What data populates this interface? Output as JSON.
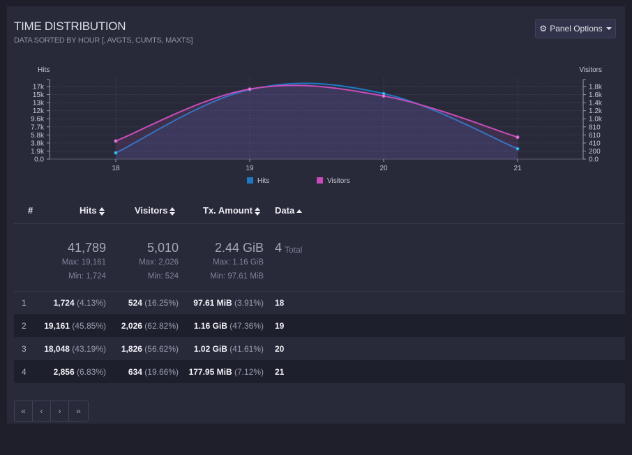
{
  "panel": {
    "title": "TIME DISTRIBUTION",
    "subtitle": "DATA SORTED BY HOUR [, AVGTS, CUMTS, MAXTS]",
    "options_label": "Panel Options",
    "options_icon": "gear-icon"
  },
  "chart_data": {
    "type": "line",
    "x": [
      18,
      19,
      20,
      21
    ],
    "x_tick_labels": [
      "18",
      "19",
      "20",
      "21"
    ],
    "left_axis": {
      "label": "Hits",
      "ticks": [
        "0.0",
        "1.9k",
        "3.8k",
        "5.8k",
        "7.7k",
        "9.6k",
        "12k",
        "13k",
        "15k",
        "17k"
      ],
      "max": 20000
    },
    "right_axis": {
      "label": "Visitors",
      "ticks": [
        "0.0",
        "200",
        "410",
        "610",
        "810",
        "1.0k",
        "1.2k",
        "1.4k",
        "1.6k",
        "1.8k"
      ],
      "max": 2100
    },
    "series": [
      {
        "name": "Hits",
        "axis": "left",
        "color": "#1f78c1",
        "values": [
          1724,
          19161,
          18048,
          2856
        ]
      },
      {
        "name": "Visitors",
        "axis": "right",
        "color": "#c74cb8",
        "values": [
          524,
          2026,
          1826,
          634
        ]
      }
    ],
    "legend": "bottom",
    "grid": true
  },
  "table": {
    "headers": {
      "index": "#",
      "hits": "Hits",
      "visitors": "Visitors",
      "tx": "Tx. Amount",
      "data": "Data"
    },
    "summary": {
      "hits_total": "41,789",
      "hits_max": "Max: 19,161",
      "hits_min": "Min: 1,724",
      "visitors_total": "5,010",
      "visitors_max": "Max: 2,026",
      "visitors_min": "Min: 524",
      "tx_total": "2.44 GiB",
      "tx_max": "Max: 1.16 GiB",
      "tx_min": "Min: 97.61 MiB",
      "data_count": "4",
      "data_label": "Total"
    },
    "rows": [
      {
        "index": "1",
        "hits": "1,724",
        "hits_pct": "(4.13%)",
        "visitors": "524",
        "visitors_pct": "(16.25%)",
        "tx": "97.61 MiB",
        "tx_pct": "(3.91%)",
        "data": "18"
      },
      {
        "index": "2",
        "hits": "19,161",
        "hits_pct": "(45.85%)",
        "visitors": "2,026",
        "visitors_pct": "(62.82%)",
        "tx": "1.16 GiB",
        "tx_pct": "(47.36%)",
        "data": "19"
      },
      {
        "index": "3",
        "hits": "18,048",
        "hits_pct": "(43.19%)",
        "visitors": "1,826",
        "visitors_pct": "(56.62%)",
        "tx": "1.02 GiB",
        "tx_pct": "(41.61%)",
        "data": "20"
      },
      {
        "index": "4",
        "hits": "2,856",
        "hits_pct": "(6.83%)",
        "visitors": "634",
        "visitors_pct": "(19.66%)",
        "tx": "177.95 MiB",
        "tx_pct": "(7.12%)",
        "data": "21"
      }
    ]
  },
  "pagination": {
    "first": "«",
    "prev": "‹",
    "next": "›",
    "last": "»"
  }
}
